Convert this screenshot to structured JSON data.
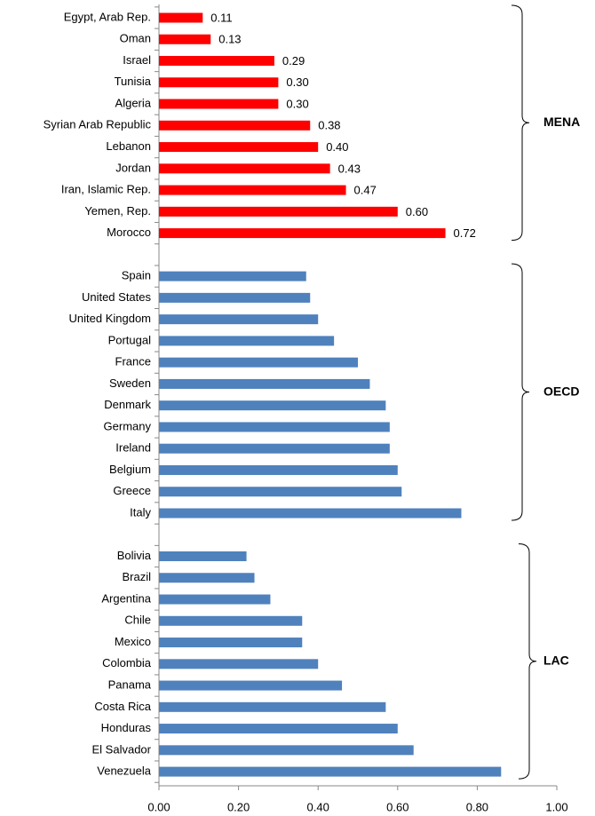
{
  "chart_data": {
    "type": "bar",
    "orientation": "horizontal",
    "groups": [
      {
        "name": "MENA",
        "color": "#ff0000",
        "categories": [
          "Egypt, Arab Rep.",
          "Oman",
          "Israel",
          "Tunisia",
          "Algeria",
          "Syrian Arab Republic",
          "Lebanon",
          "Jordan",
          "Iran, Islamic Rep.",
          "Yemen, Rep.",
          "Morocco"
        ],
        "values": [
          0.11,
          0.13,
          0.29,
          0.3,
          0.3,
          0.38,
          0.4,
          0.43,
          0.47,
          0.6,
          0.72
        ],
        "value_labels": [
          "0.11",
          "0.13",
          "0.29",
          "0.30",
          "0.30",
          "0.38",
          "0.40",
          "0.43",
          "0.47",
          "0.60",
          "0.72"
        ]
      },
      {
        "name": "OECD",
        "color": "#4f81bd",
        "categories": [
          "Spain",
          "United States",
          "United Kingdom",
          "Portugal",
          "France",
          "Sweden",
          "Denmark",
          "Germany",
          "Ireland",
          "Belgium",
          "Greece",
          "Italy"
        ],
        "values": [
          0.37,
          0.38,
          0.4,
          0.44,
          0.5,
          0.53,
          0.57,
          0.58,
          0.58,
          0.6,
          0.61,
          0.76
        ]
      },
      {
        "name": "LAC",
        "color": "#4f81bd",
        "categories": [
          "Bolivia",
          "Brazil",
          "Argentina",
          "Chile",
          "Mexico",
          "Colombia",
          "Panama",
          "Costa Rica",
          "Honduras",
          "El Salvador",
          "Venezuela"
        ],
        "values": [
          0.22,
          0.24,
          0.28,
          0.36,
          0.36,
          0.4,
          0.46,
          0.57,
          0.6,
          0.64,
          0.86
        ]
      }
    ],
    "xlim": [
      0,
      1
    ],
    "xticks": [
      {
        "value": 0,
        "label": "0.00"
      },
      {
        "value": 0.2,
        "label": "0.20"
      },
      {
        "value": 0.4,
        "label": "0.40"
      },
      {
        "value": 0.6,
        "label": "0.60"
      },
      {
        "value": 0.8,
        "label": "0.80"
      },
      {
        "value": 1,
        "label": "1.00"
      }
    ]
  }
}
